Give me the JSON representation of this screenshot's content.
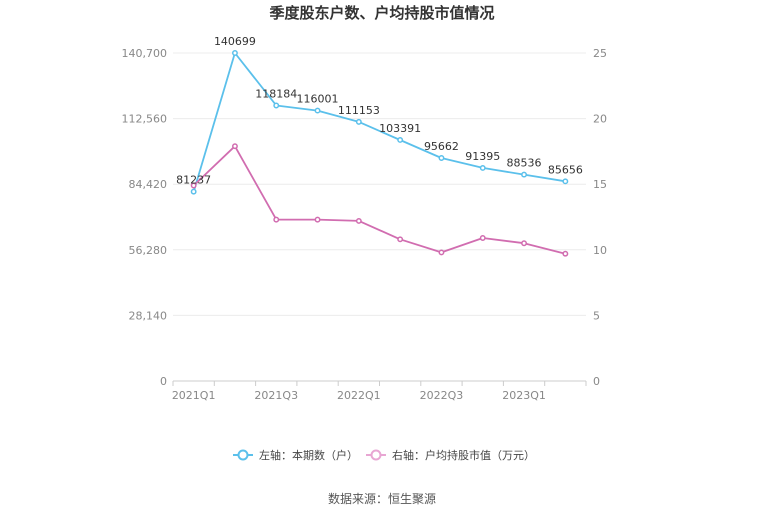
{
  "chart_data": {
    "type": "line",
    "title": "季度股东户数、户均持股市值情况",
    "categories": [
      "2021Q1",
      "2021Q2",
      "2021Q3",
      "2021Q4",
      "2022Q1",
      "2022Q2",
      "2022Q3",
      "2022Q4",
      "2023Q1",
      "2023Q2"
    ],
    "x_tick_labels": [
      "2021Q1",
      "",
      "2021Q3",
      "",
      "2022Q1",
      "",
      "2022Q3",
      "",
      "2023Q1",
      ""
    ],
    "left_axis": {
      "min": 0,
      "max": 140700,
      "ticks": [
        0,
        28140,
        56280,
        84420,
        112560,
        140700
      ],
      "tick_labels": [
        "0",
        "28,140",
        "56,280",
        "84,420",
        "112,560",
        "140,700"
      ]
    },
    "right_axis": {
      "min": 0,
      "max": 25,
      "ticks": [
        0,
        5,
        10,
        15,
        20,
        25
      ],
      "tick_labels": [
        "0",
        "5",
        "10",
        "15",
        "20",
        "25"
      ]
    },
    "series": [
      {
        "name": "左轴：本期数（户）",
        "axis": "left",
        "color": "#5bc0eb",
        "values": [
          81237,
          140699,
          118184,
          116001,
          111153,
          103391,
          95662,
          91395,
          88536,
          85656
        ],
        "labels": [
          "81237",
          "140699",
          "118184",
          "116001",
          "111153",
          "103391",
          "95662",
          "91395",
          "88536",
          "85656"
        ]
      },
      {
        "name": "右轴：户均持股市值（万元）",
        "axis": "right",
        "color": "#d16db0",
        "values": [
          14.9,
          17.9,
          12.3,
          12.3,
          12.2,
          10.8,
          9.8,
          10.9,
          10.5,
          9.7
        ]
      }
    ],
    "grid": true,
    "legend_position": "bottom"
  },
  "source": "数据来源：恒生聚源"
}
